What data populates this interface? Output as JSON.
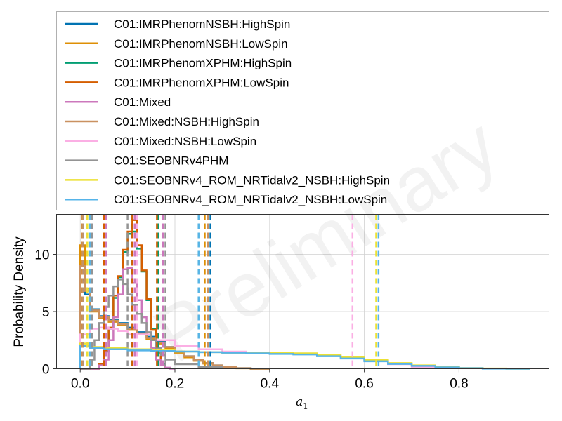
{
  "chart_data": {
    "type": "line",
    "subtype": "step-histogram",
    "xlabel": "a_1",
    "ylabel": "Probability Density",
    "xlim": [
      -0.05,
      0.99
    ],
    "ylim": [
      0,
      13.5
    ],
    "xticks": [
      0.0,
      0.2,
      0.4,
      0.6,
      0.8
    ],
    "xtick_labels": [
      "0.0",
      "0.2",
      "0.4",
      "0.6",
      "0.8"
    ],
    "yticks": [
      0,
      5,
      10
    ],
    "ytick_labels": [
      "0",
      "5",
      "10"
    ],
    "grid": true,
    "legend_position": "top (above axes)",
    "watermark": "Preliminary",
    "series": [
      {
        "name": "C01:IMRPhenomNSBH:HighSpin",
        "color": "#0173b2",
        "edges": [
          0.0,
          0.01,
          0.02,
          0.04,
          0.06,
          0.08,
          0.1,
          0.12,
          0.14,
          0.16,
          0.18,
          0.2,
          0.22,
          0.24,
          0.26,
          0.28,
          0.3,
          0.33,
          0.36,
          0.4
        ],
        "density": [
          7.8,
          6.5,
          5.2,
          4.6,
          4.3,
          4.0,
          3.6,
          3.2,
          2.8,
          2.4,
          1.9,
          1.5,
          1.1,
          0.8,
          0.5,
          0.3,
          0.15,
          0.05,
          0.0
        ],
        "bounds": [
          0.005,
          0.025,
          0.275
        ]
      },
      {
        "name": "C01:IMRPhenomNSBH:LowSpin",
        "color": "#de8f05",
        "edges": [
          0.0,
          0.01,
          0.02,
          0.04,
          0.06,
          0.08,
          0.1,
          0.12,
          0.14,
          0.16,
          0.18,
          0.2,
          0.22,
          0.24,
          0.26,
          0.28,
          0.3,
          0.33,
          0.36,
          0.4
        ],
        "density": [
          10.8,
          7.0,
          5.0,
          4.4,
          4.1,
          3.8,
          3.4,
          3.0,
          2.6,
          2.2,
          1.8,
          1.4,
          1.0,
          0.7,
          0.45,
          0.28,
          0.12,
          0.04,
          0.0
        ],
        "bounds": [
          0.004,
          0.02,
          0.263
        ]
      },
      {
        "name": "C01:IMRPhenomXPHM:HighSpin",
        "color": "#029e73",
        "edges": [
          0.0,
          0.01,
          0.02,
          0.03,
          0.04,
          0.05,
          0.06,
          0.07,
          0.08,
          0.09,
          0.1,
          0.11,
          0.12,
          0.13,
          0.14,
          0.15,
          0.16,
          0.17,
          0.18
        ],
        "density": [
          0.0,
          0.0,
          0.0,
          0.0,
          0.3,
          1.5,
          3.5,
          6.2,
          8.0,
          10.2,
          11.8,
          12.0,
          10.5,
          8.5,
          6.0,
          3.5,
          1.5,
          0.4
        ],
        "bounds": [
          0.05,
          0.11,
          0.165
        ]
      },
      {
        "name": "C01:IMRPhenomXPHM:LowSpin",
        "color": "#d55e00",
        "edges": [
          0.0,
          0.01,
          0.02,
          0.03,
          0.04,
          0.05,
          0.06,
          0.07,
          0.08,
          0.09,
          0.1,
          0.11,
          0.12,
          0.13,
          0.14,
          0.15,
          0.16,
          0.17,
          0.18
        ],
        "density": [
          0.0,
          0.0,
          0.0,
          0.0,
          0.4,
          1.6,
          3.6,
          6.4,
          8.1,
          10.4,
          12.0,
          13.0,
          10.8,
          8.6,
          6.1,
          3.4,
          1.4,
          0.3
        ],
        "bounds": [
          0.05,
          0.11,
          0.162
        ]
      },
      {
        "name": "C01:Mixed",
        "color": "#cc78bc",
        "edges": [
          0.0,
          0.01,
          0.02,
          0.03,
          0.04,
          0.05,
          0.06,
          0.07,
          0.08,
          0.09,
          0.1,
          0.11,
          0.12,
          0.13,
          0.14,
          0.15,
          0.16,
          0.17,
          0.18,
          0.19,
          0.2
        ],
        "density": [
          0.0,
          0.0,
          0.0,
          0.0,
          0.3,
          0.8,
          2.5,
          4.5,
          6.5,
          8.7,
          8.8,
          7.5,
          6.0,
          4.5,
          3.0,
          1.8,
          0.8,
          0.3,
          0.1,
          0.0
        ],
        "bounds": [
          0.055,
          0.115,
          0.175
        ]
      },
      {
        "name": "C01:Mixed:NSBH:HighSpin",
        "color": "#ca9161",
        "edges": [
          0.0,
          0.01,
          0.02,
          0.04,
          0.06,
          0.08,
          0.1,
          0.12,
          0.14,
          0.16,
          0.18,
          0.2,
          0.22,
          0.24,
          0.26,
          0.28,
          0.3,
          0.33,
          0.36,
          0.4
        ],
        "density": [
          9.0,
          6.8,
          5.1,
          4.5,
          4.2,
          3.9,
          3.5,
          3.1,
          2.7,
          2.3,
          1.9,
          1.5,
          1.1,
          0.75,
          0.5,
          0.3,
          0.14,
          0.05,
          0.0
        ],
        "bounds": [
          0.005,
          0.022,
          0.27
        ]
      },
      {
        "name": "C01:Mixed:NSBH:LowSpin",
        "color": "#fbafe4",
        "edges": [
          0.0,
          0.02,
          0.04,
          0.06,
          0.08,
          0.1,
          0.15,
          0.2,
          0.25,
          0.3,
          0.35,
          0.4,
          0.45,
          0.5,
          0.55,
          0.6,
          0.65,
          0.7,
          0.75,
          0.8
        ],
        "density": [
          3.0,
          3.5,
          3.6,
          3.5,
          3.3,
          3.0,
          2.5,
          2.0,
          1.7,
          1.5,
          1.4,
          1.35,
          1.3,
          1.2,
          1.0,
          0.7,
          0.4,
          0.15,
          0.05
        ],
        "bounds": [
          0.015,
          0.12,
          0.575
        ]
      },
      {
        "name": "C01:SEOBNRv4PHM",
        "color": "#949494",
        "edges": [
          0.0,
          0.01,
          0.02,
          0.03,
          0.04,
          0.05,
          0.06,
          0.07,
          0.08,
          0.09,
          0.1,
          0.11,
          0.12,
          0.13,
          0.14,
          0.15,
          0.16,
          0.17,
          0.18,
          0.2,
          0.25,
          0.3
        ],
        "density": [
          0.0,
          0.0,
          0.8,
          2.5,
          4.0,
          5.4,
          6.4,
          7.2,
          7.8,
          7.4,
          6.5,
          5.6,
          4.8,
          4.0,
          3.2,
          2.5,
          1.8,
          1.2,
          0.8,
          0.4,
          0.15
        ],
        "bounds": [
          0.025,
          0.1,
          0.18
        ]
      },
      {
        "name": "C01:SEOBNRv4_ROM_NRTidalv2_NSBH:HighSpin",
        "color": "#ece133",
        "edges": [
          0.0,
          0.02,
          0.05,
          0.1,
          0.15,
          0.2,
          0.25,
          0.3,
          0.35,
          0.4,
          0.45,
          0.5,
          0.55,
          0.6,
          0.65,
          0.7,
          0.75,
          0.8,
          0.85,
          0.9,
          0.95
        ],
        "density": [
          2.2,
          1.9,
          1.8,
          1.7,
          1.6,
          1.5,
          1.45,
          1.4,
          1.4,
          1.4,
          1.35,
          1.2,
          1.0,
          0.75,
          0.5,
          0.3,
          0.15,
          0.06,
          0.02,
          0.0
        ],
        "bounds": [
          0.015,
          0.25,
          0.625
        ]
      },
      {
        "name": "C01:SEOBNRv4_ROM_NRTidalv2_NSBH:LowSpin",
        "color": "#56b4e9",
        "edges": [
          0.0,
          0.02,
          0.05,
          0.1,
          0.15,
          0.2,
          0.25,
          0.3,
          0.35,
          0.4,
          0.45,
          0.5,
          0.55,
          0.6,
          0.65,
          0.7,
          0.75,
          0.8,
          0.85,
          0.9,
          0.95
        ],
        "density": [
          2.0,
          1.8,
          1.7,
          1.6,
          1.55,
          1.5,
          1.45,
          1.4,
          1.35,
          1.3,
          1.25,
          1.1,
          0.9,
          0.65,
          0.42,
          0.25,
          0.12,
          0.05,
          0.01,
          0.0
        ],
        "bounds": [
          0.02,
          0.25,
          0.63
        ]
      }
    ]
  }
}
